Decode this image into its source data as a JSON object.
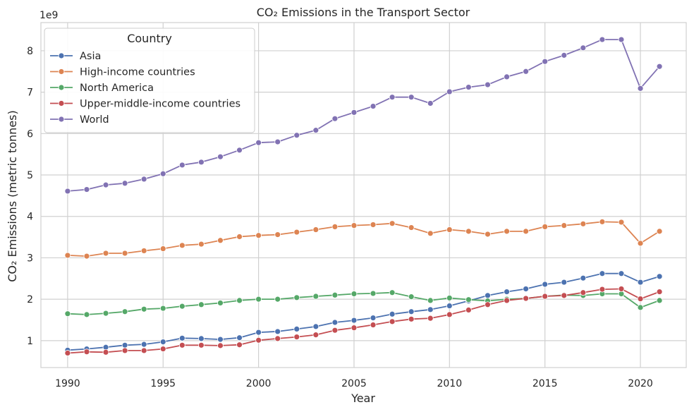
{
  "chart_data": {
    "type": "line",
    "title": "CO₂ Emissions in the Transport Sector",
    "xlabel": "Year",
    "ylabel": "CO₂ Emissions (metric tonnes)",
    "y_offset_label": "1e9",
    "legend_title": "Country",
    "legend_position": "top-left",
    "grid": true,
    "xlim": [
      1988.6,
      2022.4
    ],
    "ylim": [
      0.35,
      8.68
    ],
    "x_ticks": [
      1990,
      1995,
      2000,
      2005,
      2010,
      2015,
      2020
    ],
    "y_ticks": [
      1,
      2,
      3,
      4,
      5,
      6,
      7,
      8
    ],
    "x": [
      1990,
      1991,
      1992,
      1993,
      1994,
      1995,
      1996,
      1997,
      1998,
      1999,
      2000,
      2001,
      2002,
      2003,
      2004,
      2005,
      2006,
      2007,
      2008,
      2009,
      2010,
      2011,
      2012,
      2013,
      2014,
      2015,
      2016,
      2017,
      2018,
      2019,
      2020,
      2021
    ],
    "series": [
      {
        "name": "Asia",
        "color": "#4c72b0",
        "values": [
          0.77,
          0.8,
          0.84,
          0.89,
          0.91,
          0.97,
          1.06,
          1.05,
          1.03,
          1.07,
          1.2,
          1.22,
          1.28,
          1.34,
          1.44,
          1.49,
          1.55,
          1.64,
          1.7,
          1.75,
          1.84,
          1.96,
          2.09,
          2.18,
          2.25,
          2.36,
          2.41,
          2.51,
          2.62,
          2.62,
          2.41,
          2.55
        ]
      },
      {
        "name": "High-income countries",
        "color": "#dd8452",
        "values": [
          3.06,
          3.04,
          3.11,
          3.11,
          3.17,
          3.22,
          3.3,
          3.33,
          3.42,
          3.51,
          3.54,
          3.56,
          3.62,
          3.68,
          3.75,
          3.78,
          3.8,
          3.83,
          3.73,
          3.59,
          3.68,
          3.64,
          3.57,
          3.64,
          3.64,
          3.75,
          3.78,
          3.82,
          3.87,
          3.86,
          3.35,
          3.64
        ]
      },
      {
        "name": "North America",
        "color": "#55a868",
        "values": [
          1.65,
          1.63,
          1.66,
          1.7,
          1.76,
          1.78,
          1.83,
          1.87,
          1.91,
          1.97,
          2.0,
          2.0,
          2.04,
          2.07,
          2.1,
          2.13,
          2.14,
          2.16,
          2.06,
          1.97,
          2.03,
          1.99,
          1.96,
          2.0,
          2.02,
          2.07,
          2.1,
          2.09,
          2.13,
          2.13,
          1.8,
          1.97
        ]
      },
      {
        "name": "Upper-middle-income countries",
        "color": "#c44e52",
        "values": [
          0.7,
          0.73,
          0.72,
          0.76,
          0.76,
          0.8,
          0.89,
          0.89,
          0.88,
          0.9,
          1.01,
          1.05,
          1.09,
          1.14,
          1.25,
          1.31,
          1.38,
          1.46,
          1.52,
          1.54,
          1.63,
          1.74,
          1.87,
          1.97,
          2.02,
          2.07,
          2.09,
          2.16,
          2.24,
          2.25,
          2.01,
          2.18
        ]
      },
      {
        "name": "World",
        "color": "#8172b3",
        "values": [
          4.61,
          4.65,
          4.76,
          4.8,
          4.9,
          5.03,
          5.24,
          5.31,
          5.44,
          5.6,
          5.78,
          5.8,
          5.96,
          6.08,
          6.36,
          6.51,
          6.66,
          6.88,
          6.88,
          6.73,
          7.01,
          7.12,
          7.18,
          7.37,
          7.5,
          7.74,
          7.89,
          8.07,
          8.27,
          8.27,
          7.09,
          7.62
        ]
      }
    ]
  }
}
